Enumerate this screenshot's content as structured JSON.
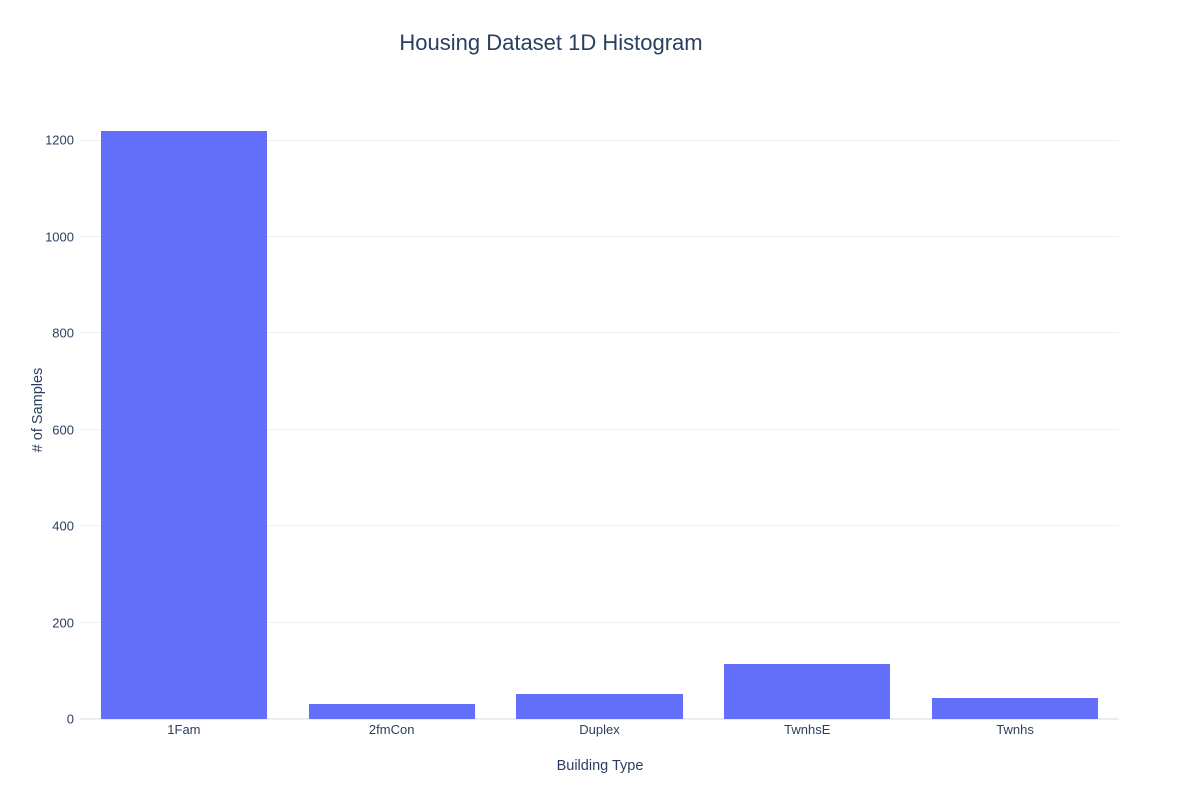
{
  "chart_data": {
    "type": "bar",
    "title": "Housing Dataset 1D Histogram",
    "xlabel": "Building Type",
    "ylabel": "# of Samples",
    "categories": [
      "1Fam",
      "2fmCon",
      "Duplex",
      "TwnhsE",
      "Twnhs"
    ],
    "values": [
      1220,
      31,
      52,
      114,
      43
    ],
    "yticks": [
      0,
      200,
      400,
      600,
      800,
      1000,
      1200
    ],
    "ylim": [
      0,
      1284
    ],
    "bar_color": "#636efa",
    "grid_color": "#ebf0f8",
    "zeroline_color": "#e8edf5",
    "text_color": "#2a3f5f",
    "background_color": "#ffffff",
    "grid": "on",
    "legend": "none",
    "bar_fraction_of_slot": 0.8
  }
}
